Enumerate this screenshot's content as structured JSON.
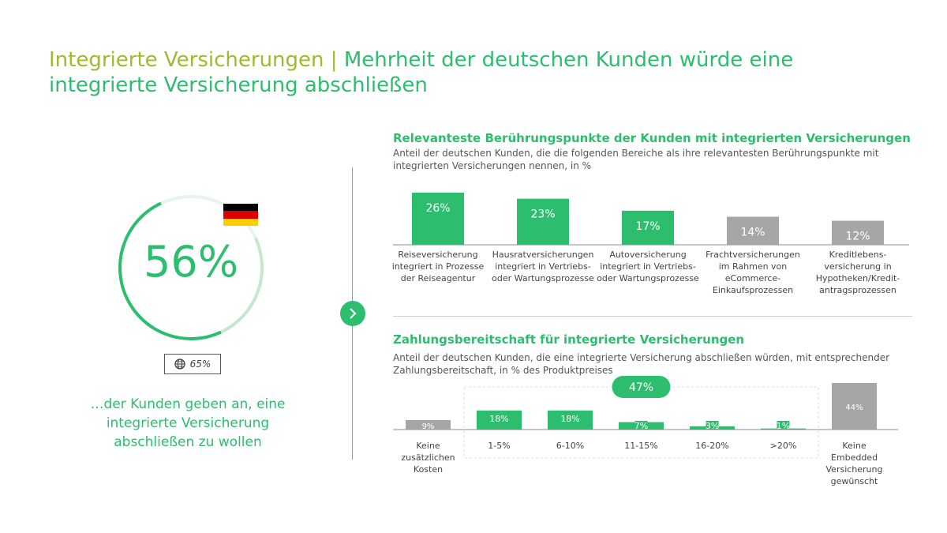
{
  "header": {
    "title_lead": "Integrierte Versicherungen",
    "title_separator": " | ",
    "title_main": "Mehrheit der deutschen Kunden würde eine integrierte Versicherung abschließen"
  },
  "left_panel": {
    "headline_value": "56%",
    "flag": "germany-flag",
    "global_badge": {
      "icon": "globe-icon",
      "value": "65%"
    },
    "claim": "…der Kunden geben an, eine integrierte Versicherung abschließen zu wollen",
    "nav_icon": "chevron-right-icon"
  },
  "colors": {
    "green": "#2dbd6e",
    "gray": "#a6a6a6",
    "olive": "#a3b82e",
    "axis": "#8c8c8c"
  },
  "chart_data": [
    {
      "type": "bar",
      "title": "Relevanteste Berührungspunkte der Kunden mit integrierten Versicherungen",
      "subtitle": "Anteil der deutschen Kunden, die die folgenden Bereiche als ihre relevantesten Berührungspunkte mit integrierten Versicherungen nennen, in %",
      "categories": [
        "Reiseversicherung integriert in Prozesse der Reiseagentur",
        "Hausratversicherungen integriert in Vertriebs- oder Wartungsprozesse",
        "Autoversicherung integriert in Vertriebs- oder Wartungsprozesse",
        "Frachtversicherungen im Rahmen von eCommerce-Einkaufsprozessen",
        "Kreditlebens-versicherung in Hypotheken/Kredit-antragsprozessen"
      ],
      "category_lines": [
        [
          "Reiseversicherung",
          "integriert in Prozesse",
          "der Reiseagentur"
        ],
        [
          "Hausratversicherungen",
          "integriert in Vertriebs-",
          "oder Wartungsprozesse"
        ],
        [
          "Autoversicherung",
          "integriert in Vertriebs-",
          "oder Wartungsprozesse"
        ],
        [
          "Frachtversicherungen",
          "im Rahmen von",
          "eCommerce-",
          "Einkaufsprozessen"
        ],
        [
          "Kreditlebens-",
          "versicherung in",
          "Hypotheken/Kredit-",
          "antragsprozessen"
        ]
      ],
      "values": [
        26,
        23,
        17,
        14,
        12
      ],
      "labels": [
        "26%",
        "23%",
        "17%",
        "14%",
        "12%"
      ],
      "colors": [
        "#2dbd6e",
        "#2dbd6e",
        "#2dbd6e",
        "#a6a6a6",
        "#a6a6a6"
      ],
      "ylim": [
        0,
        26
      ]
    },
    {
      "type": "bar",
      "title": "Zahlungsbereitschaft für integrierte Versicherungen",
      "subtitle": "Anteil der deutschen Kunden, die eine integrierte Versicherung abschließen würden, mit entsprechender Zahlungsbereitschaft, in % des Produktpreises",
      "categories": [
        "Keine zusätzlichen Kosten",
        "1-5%",
        "6-10%",
        "11-15%",
        "16-20%",
        ">20%",
        "Keine Embedded Versicherung gewünscht"
      ],
      "category_lines": [
        [
          "Keine",
          "zusätzlichen",
          "Kosten"
        ],
        [
          "1-5%"
        ],
        [
          "6-10%"
        ],
        [
          "11-15%"
        ],
        [
          "16-20%"
        ],
        [
          ">20%"
        ],
        [
          "Keine",
          "Embedded",
          "Versicherung",
          "gewünscht"
        ]
      ],
      "values": [
        9,
        18,
        18,
        7,
        3,
        1,
        44
      ],
      "labels": [
        "9%",
        "18%",
        "18%",
        "7%",
        "3%",
        "1%",
        "44%"
      ],
      "colors": [
        "#a6a6a6",
        "#2dbd6e",
        "#2dbd6e",
        "#2dbd6e",
        "#2dbd6e",
        "#2dbd6e",
        "#a6a6a6"
      ],
      "group_total": {
        "label": "47%",
        "from": 1,
        "to": 5
      },
      "ylim": [
        0,
        44
      ]
    }
  ]
}
